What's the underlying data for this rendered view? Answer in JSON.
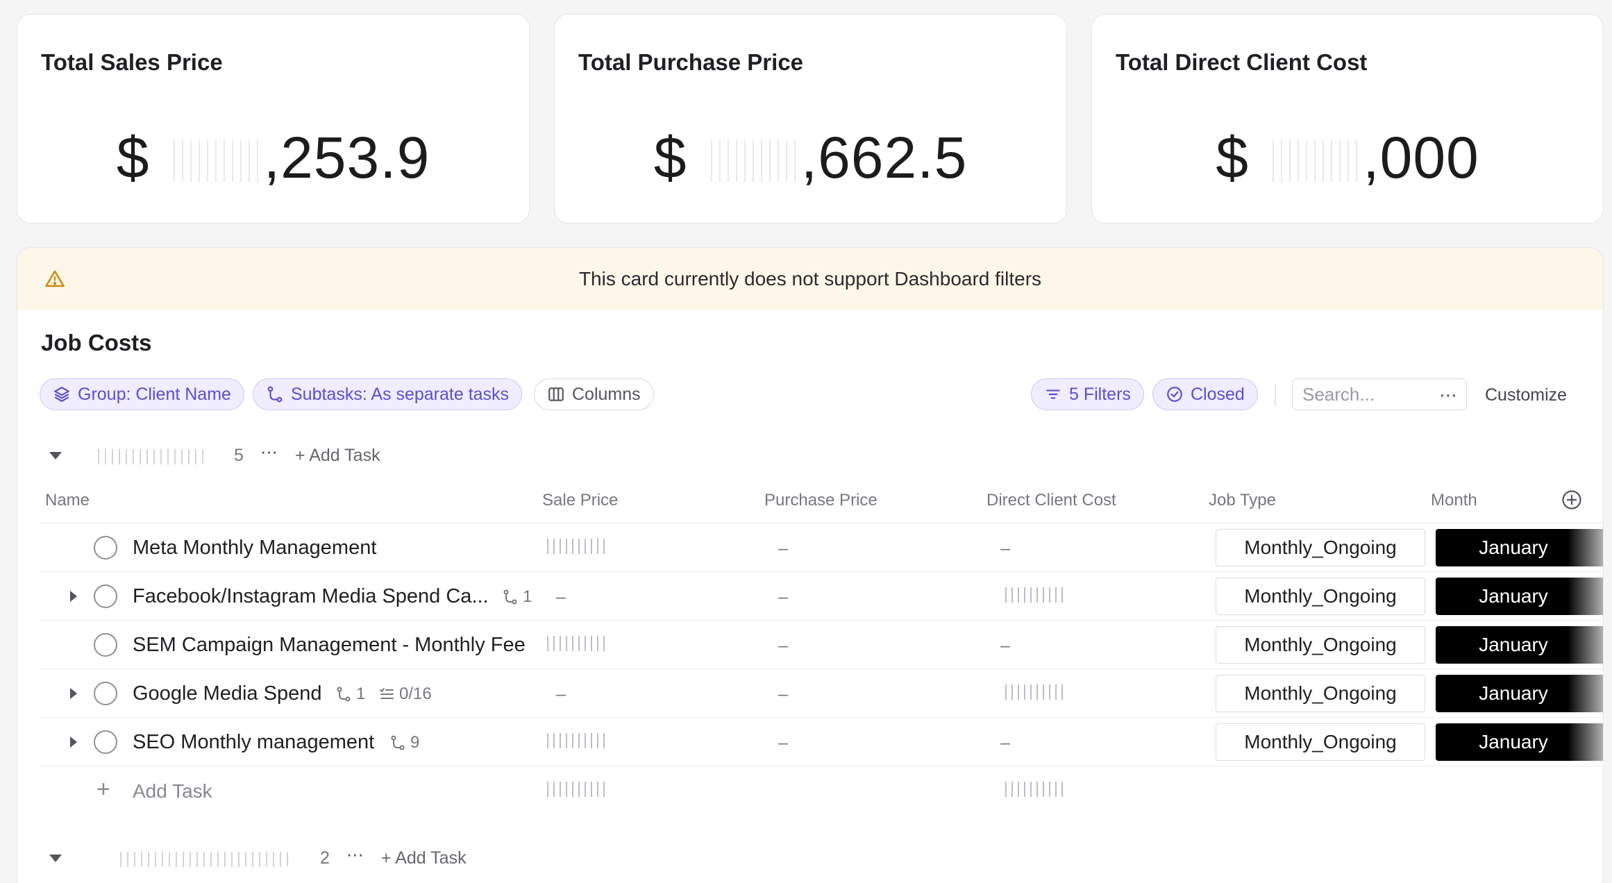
{
  "cards": [
    {
      "title": "Total Sales Price",
      "currency": "$",
      "value_suffix": ",253.9"
    },
    {
      "title": "Total Purchase Price",
      "currency": "$",
      "value_suffix": ",662.5"
    },
    {
      "title": "Total Direct Client Cost",
      "currency": "$",
      "value_suffix": ",000"
    }
  ],
  "banner": {
    "text": "This card currently does not support Dashboard filters"
  },
  "section": {
    "title": "Job Costs"
  },
  "toolbar": {
    "group": "Group: Client Name",
    "subtasks": "Subtasks: As separate tasks",
    "columns": "Columns",
    "filters": "5 Filters",
    "closed": "Closed",
    "search_placeholder": "Search...",
    "customize": "Customize"
  },
  "groups": [
    {
      "count": "5",
      "add_task": "Add Task"
    },
    {
      "count": "2",
      "add_task": "Add Task"
    }
  ],
  "columns": [
    "Name",
    "Sale Price",
    "Purchase Price",
    "Direct Client Cost",
    "Job Type",
    "Month"
  ],
  "rows": [
    {
      "name": "Meta Monthly Management",
      "subtasks": "",
      "checklist": "",
      "sale_price": "masked",
      "purchase_price": "–",
      "direct_client_cost": "–",
      "job_type": "Monthly_Ongoing",
      "month": "January"
    },
    {
      "name": "Facebook/Instagram Media Spend Ca...",
      "subtasks": "1",
      "checklist": "",
      "sale_price": "–",
      "purchase_price": "–",
      "direct_client_cost": "masked",
      "job_type": "Monthly_Ongoing",
      "month": "January"
    },
    {
      "name": "SEM Campaign Management - Monthly Fee",
      "subtasks": "",
      "checklist": "",
      "sale_price": "masked",
      "purchase_price": "–",
      "direct_client_cost": "–",
      "job_type": "Monthly_Ongoing",
      "month": "January"
    },
    {
      "name": "Google Media Spend",
      "subtasks": "1",
      "checklist": "0/16",
      "sale_price": "–",
      "purchase_price": "–",
      "direct_client_cost": "masked",
      "job_type": "Monthly_Ongoing",
      "month": "January"
    },
    {
      "name": "SEO Monthly management",
      "subtasks": "9",
      "checklist": "",
      "sale_price": "masked",
      "purchase_price": "–",
      "direct_client_cost": "–",
      "job_type": "Monthly_Ongoing",
      "month": "January"
    }
  ],
  "add_task_label": "Add Task",
  "dash": "–",
  "icons": {
    "warning": "warning-triangle-icon",
    "layers": "layers-icon",
    "subtask": "subtask-branch-icon",
    "columns": "columns-icon",
    "filter": "filter-icon",
    "check_circle": "check-circle-icon",
    "more": "more-dots-icon",
    "plus": "plus-icon",
    "add_column": "plus-circle-icon"
  }
}
